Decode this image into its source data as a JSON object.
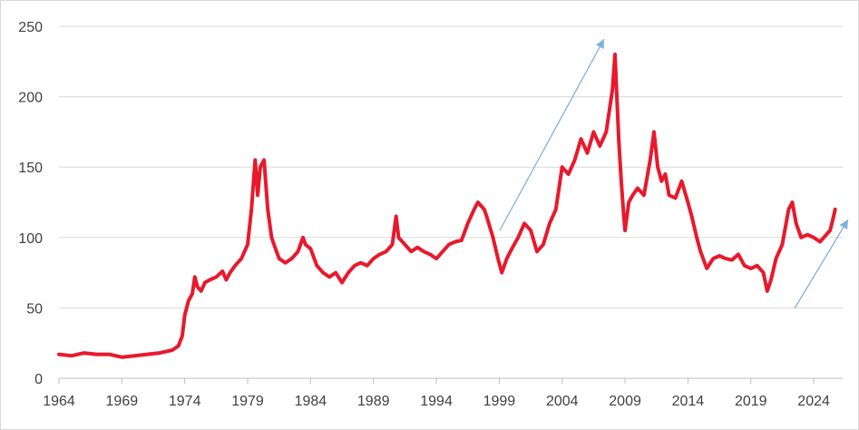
{
  "chart_data": {
    "type": "line",
    "title": "",
    "xlabel": "",
    "ylabel": "",
    "xlim": [
      1964,
      2026.3
    ],
    "ylim": [
      0,
      250
    ],
    "grid": "horizontal",
    "legend": "none",
    "x_ticks": [
      "1964",
      "1969",
      "1974",
      "1979",
      "1984",
      "1989",
      "1994",
      "1999",
      "2004",
      "2009",
      "2014",
      "2019",
      "2024"
    ],
    "y_ticks": [
      "0",
      "50",
      "100",
      "150",
      "200",
      "250"
    ],
    "colors": {
      "series": "#e8192c",
      "arrow": "#7fb2e0",
      "grid": "#d9d9d9",
      "text": "#404040"
    },
    "series": [
      {
        "color": "#e8192c",
        "x": [
          1964.0,
          1965.0,
          1966.0,
          1967.0,
          1968.0,
          1969.0,
          1970.0,
          1971.0,
          1972.0,
          1973.0,
          1973.5,
          1973.8,
          1974.0,
          1974.3,
          1974.6,
          1974.8,
          1975.0,
          1975.3,
          1975.6,
          1976.0,
          1976.5,
          1977.0,
          1977.3,
          1977.6,
          1978.0,
          1978.5,
          1979.0,
          1979.3,
          1979.6,
          1979.8,
          1980.0,
          1980.3,
          1980.6,
          1980.9,
          1981.1,
          1981.5,
          1982.0,
          1982.5,
          1983.0,
          1983.4,
          1983.6,
          1984.0,
          1984.5,
          1985.0,
          1985.5,
          1986.0,
          1986.5,
          1987.0,
          1987.5,
          1988.0,
          1988.5,
          1989.0,
          1989.5,
          1990.0,
          1990.5,
          1990.8,
          1991.0,
          1991.5,
          1992.0,
          1992.5,
          1993.0,
          1993.5,
          1994.0,
          1994.5,
          1995.0,
          1995.5,
          1996.0,
          1996.5,
          1997.0,
          1997.3,
          1997.8,
          1998.0,
          1998.5,
          1998.9,
          1999.2,
          1999.6,
          2000.0,
          2000.5,
          2001.0,
          2001.5,
          2002.0,
          2002.5,
          2003.0,
          2003.5,
          2004.0,
          2004.5,
          2005.0,
          2005.5,
          2006.0,
          2006.5,
          2007.0,
          2007.5,
          2008.0,
          2008.2,
          2008.5,
          2008.7,
          2008.9,
          2009.0,
          2009.3,
          2009.6,
          2010.0,
          2010.5,
          2011.0,
          2011.3,
          2011.6,
          2011.9,
          2012.2,
          2012.5,
          2013.0,
          2013.5,
          2014.0,
          2014.3,
          2014.7,
          2015.0,
          2015.5,
          2016.0,
          2016.5,
          2017.0,
          2017.5,
          2018.0,
          2018.5,
          2019.0,
          2019.5,
          2020.0,
          2020.3,
          2020.6,
          2021.0,
          2021.5,
          2022.0,
          2022.3,
          2022.6,
          2023.0,
          2023.5,
          2024.0,
          2024.5,
          2025.0,
          2025.3,
          2025.5,
          2025.7
        ],
        "y": [
          17,
          16,
          18,
          17,
          17,
          15,
          16,
          17,
          18,
          20,
          23,
          30,
          45,
          55,
          60,
          72,
          65,
          62,
          68,
          70,
          72,
          76,
          70,
          75,
          80,
          85,
          95,
          120,
          155,
          130,
          150,
          155,
          120,
          100,
          95,
          85,
          82,
          85,
          90,
          100,
          95,
          92,
          80,
          75,
          72,
          75,
          68,
          75,
          80,
          82,
          80,
          85,
          88,
          90,
          95,
          115,
          100,
          95,
          90,
          93,
          90,
          88,
          85,
          90,
          95,
          97,
          98,
          110,
          120,
          125,
          120,
          115,
          100,
          85,
          75,
          85,
          92,
          100,
          110,
          105,
          90,
          95,
          110,
          120,
          150,
          145,
          155,
          170,
          160,
          175,
          165,
          175,
          205,
          230,
          170,
          140,
          115,
          105,
          125,
          130,
          135,
          130,
          155,
          175,
          150,
          140,
          145,
          130,
          128,
          140,
          125,
          115,
          100,
          90,
          78,
          85,
          87,
          85,
          84,
          88,
          80,
          78,
          80,
          75,
          62,
          70,
          85,
          95,
          120,
          125,
          110,
          100,
          102,
          100,
          97,
          102,
          105,
          112,
          120
        ]
      }
    ]
  }
}
